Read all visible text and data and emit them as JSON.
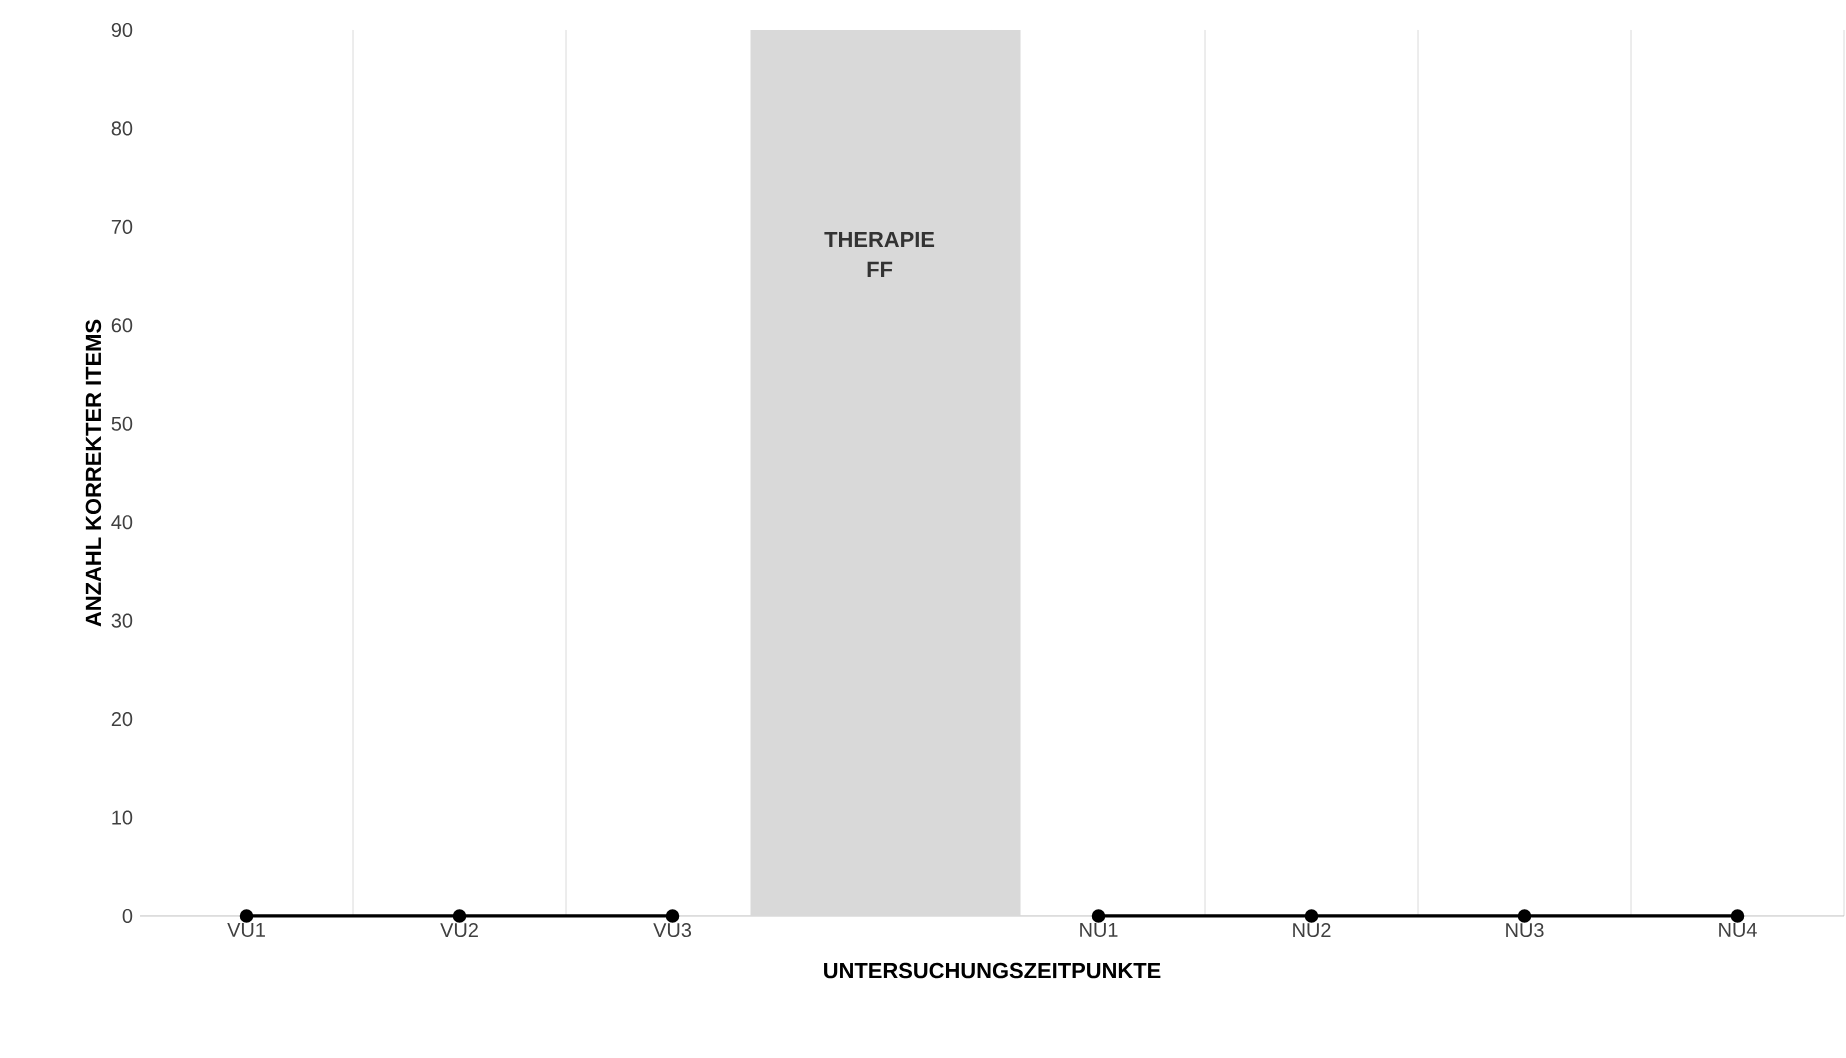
{
  "chart_data": {
    "type": "line",
    "xlabel": "UNTERSUCHUNGSZEITPUNKTE",
    "ylabel": "ANZAHL KORREKTER ITEMS",
    "categories": [
      "VU1",
      "VU2",
      "VU3",
      null,
      "NU1",
      "NU2",
      "NU3",
      "NU4"
    ],
    "series": [
      {
        "type": "bar",
        "color": "#d9d9d9",
        "values": [
          null,
          null,
          null,
          90,
          null,
          null,
          null,
          null
        ]
      },
      {
        "color": "#000000",
        "values": [
          0,
          0,
          0,
          null,
          0,
          0,
          0,
          0
        ]
      }
    ],
    "ylim": [
      0,
      90
    ],
    "yticks": [
      0,
      10,
      20,
      30,
      40,
      50,
      60,
      70,
      80,
      90
    ],
    "grid": "x",
    "marker": "circle",
    "line_style": "solid",
    "annotations": [
      "THERAPIE FF"
    ]
  }
}
